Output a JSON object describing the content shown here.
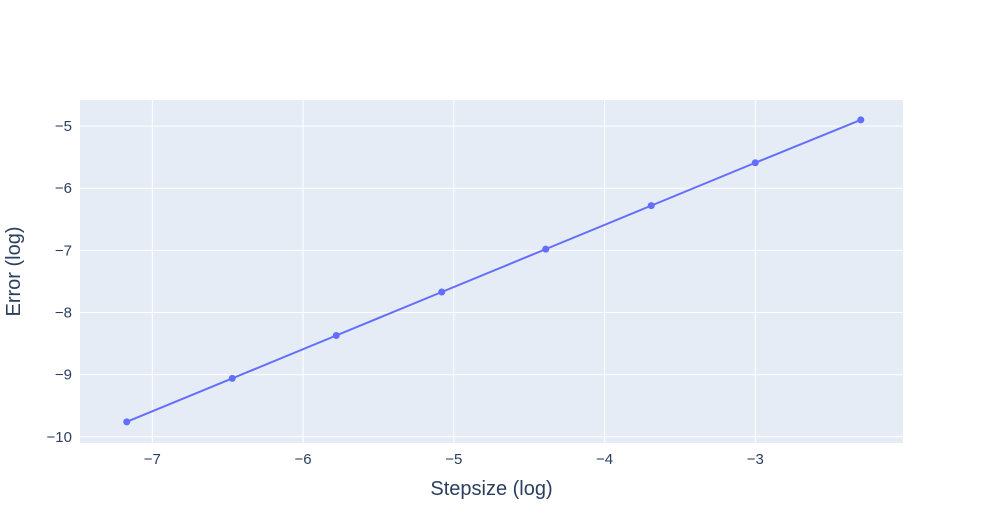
{
  "chart_data": {
    "type": "line",
    "title": "",
    "xlabel": "Stepsize (log)",
    "ylabel": "Error (log)",
    "xlim": [
      -7.48,
      -2.02
    ],
    "ylim": [
      -10.1,
      -4.58
    ],
    "x_ticks": [
      -7,
      -6,
      -5,
      -4,
      -3
    ],
    "y_ticks": [
      -10,
      -9,
      -8,
      -7,
      -6,
      -5
    ],
    "x_tick_labels": [
      "−7",
      "−6",
      "−5",
      "−4",
      "−3"
    ],
    "y_tick_labels": [
      "−10",
      "−9",
      "−8",
      "−7",
      "−6",
      "−5"
    ],
    "grid": true,
    "plot_bg": "#e5ecf6",
    "grid_color": "#ffffff",
    "series": [
      {
        "color": "#636efa",
        "x": [
          -7.17,
          -6.47,
          -5.78,
          -5.08,
          -4.39,
          -3.69,
          -3.0,
          -2.3
        ],
        "y": [
          -9.76,
          -9.06,
          -8.37,
          -7.67,
          -6.98,
          -6.28,
          -5.59,
          -4.9
        ]
      }
    ]
  }
}
